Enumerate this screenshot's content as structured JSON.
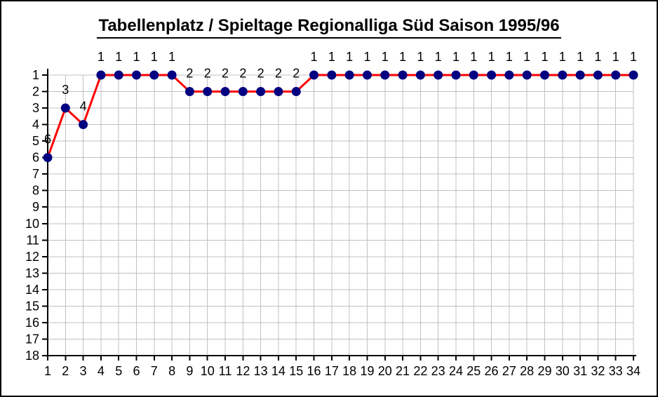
{
  "frame": {
    "background": "#ffffff",
    "border_color": "#000000"
  },
  "chart_data": {
    "type": "line",
    "title": "Tabellenplatz / Spieltage Regionalliga Süd Saison 1995/96",
    "title_underlined": true,
    "xlabel": "",
    "ylabel": "",
    "x": [
      1,
      2,
      3,
      4,
      5,
      6,
      7,
      8,
      9,
      10,
      11,
      12,
      13,
      14,
      15,
      16,
      17,
      18,
      19,
      20,
      21,
      22,
      23,
      24,
      25,
      26,
      27,
      28,
      29,
      30,
      31,
      32,
      33,
      34
    ],
    "y_ticks": [
      1,
      2,
      3,
      4,
      5,
      6,
      7,
      8,
      9,
      10,
      11,
      12,
      13,
      14,
      15,
      16,
      17,
      18
    ],
    "series": [
      {
        "name": "Tabellenplatz",
        "values": [
          6,
          3,
          4,
          1,
          1,
          1,
          1,
          1,
          2,
          2,
          2,
          2,
          2,
          2,
          2,
          1,
          1,
          1,
          1,
          1,
          1,
          1,
          1,
          1,
          1,
          1,
          1,
          1,
          1,
          1,
          1,
          1,
          1,
          1
        ],
        "data_labels": [
          "6",
          "3",
          "4",
          "1",
          "1",
          "1",
          "1",
          "1",
          "2",
          "2",
          "2",
          "2",
          "2",
          "2",
          "2",
          "1",
          "1",
          "1",
          "1",
          "1",
          "1",
          "1",
          "1",
          "1",
          "1",
          "1",
          "1",
          "1",
          "1",
          "1",
          "1",
          "1",
          "1",
          "1"
        ],
        "line_color": "#ff0000",
        "marker_color": "#000080",
        "marker_shape": "circle"
      }
    ],
    "x_axis": {
      "min": 1,
      "max": 34
    },
    "y_axis": {
      "min": 1,
      "max": 18,
      "inverted": true
    },
    "grid": {
      "horizontal": true,
      "vertical": true,
      "color": "#c0c0c0"
    },
    "axis_color": "#000000",
    "text_color": "#000000",
    "legend_position": "none"
  }
}
